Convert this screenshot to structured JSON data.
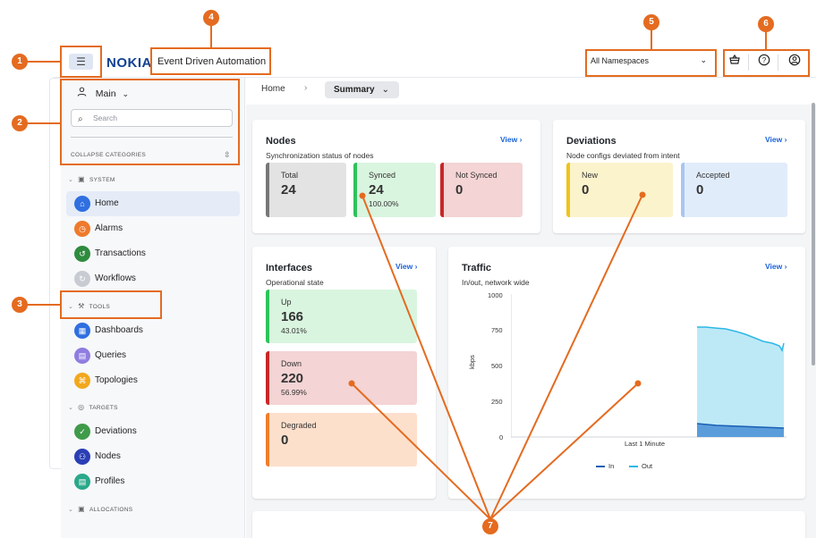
{
  "header": {
    "menu_icon": "hamburger-icon",
    "logo": "NOKIA",
    "app_name": "Event Driven Automation",
    "namespace": "All Namespaces",
    "icons": [
      "basket-icon",
      "help-icon",
      "user-icon"
    ]
  },
  "sidebar": {
    "context": "Main",
    "search_placeholder": "Search",
    "collapse_label": "COLLAPSE CATEGORIES",
    "categories": {
      "system": "SYSTEM",
      "tools": "TOOLS",
      "targets": "TARGETS",
      "allocations": "ALLOCATIONS"
    },
    "items": {
      "home": "Home",
      "alarms": "Alarms",
      "transactions": "Transactions",
      "workflows": "Workflows",
      "dashboards": "Dashboards",
      "queries": "Queries",
      "topologies": "Topologies",
      "deviations": "Deviations",
      "nodes": "Nodes",
      "profiles": "Profiles"
    }
  },
  "breadcrumb": {
    "home": "Home",
    "current": "Summary"
  },
  "cards": {
    "nodes": {
      "title": "Nodes",
      "subtitle": "Synchronization status of nodes",
      "view": "View",
      "tiles": [
        {
          "label": "Total",
          "value": "24"
        },
        {
          "label": "Synced",
          "value": "24",
          "pct": "100.00%"
        },
        {
          "label": "Not Synced",
          "value": "0"
        }
      ]
    },
    "deviations": {
      "title": "Deviations",
      "subtitle": "Node configs deviated from intent",
      "view": "View",
      "tiles": [
        {
          "label": "New",
          "value": "0"
        },
        {
          "label": "Accepted",
          "value": "0"
        }
      ]
    },
    "interfaces": {
      "title": "Interfaces",
      "subtitle": "Operational state",
      "view": "View",
      "tiles": [
        {
          "label": "Up",
          "value": "166",
          "pct": "43.01%"
        },
        {
          "label": "Down",
          "value": "220",
          "pct": "56.99%"
        },
        {
          "label": "Degraded",
          "value": "0"
        }
      ]
    },
    "traffic": {
      "title": "Traffic",
      "subtitle": "In/out, network wide",
      "view": "View",
      "ylabel": "kbps",
      "xlabel": "Last 1 Minute",
      "yticks": [
        "1000",
        "750",
        "500",
        "250",
        "0"
      ],
      "legend": [
        "In",
        "Out"
      ]
    }
  },
  "callouts": [
    "1",
    "2",
    "3",
    "4",
    "5",
    "6",
    "7"
  ],
  "colors": {
    "accent": "#e46b20",
    "brand": "#124191",
    "link": "#1a62d8"
  }
}
